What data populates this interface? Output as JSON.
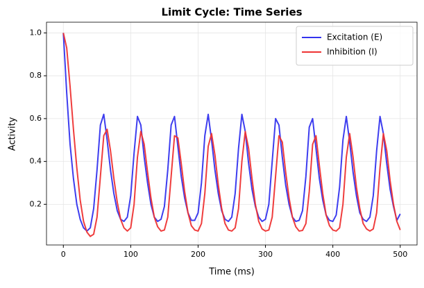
{
  "chart_data": {
    "type": "line",
    "title": "Limit Cycle: Time Series",
    "xlabel": "Time (ms)",
    "ylabel": "Activity",
    "x": [
      0,
      5,
      10,
      15,
      20,
      25,
      30,
      35,
      40,
      45,
      50,
      55,
      60,
      65,
      70,
      75,
      80,
      85,
      90,
      95,
      100,
      105,
      110,
      115,
      120,
      125,
      130,
      135,
      140,
      145,
      150,
      155,
      160,
      165,
      170,
      175,
      180,
      185,
      190,
      195,
      200,
      205,
      210,
      215,
      220,
      225,
      230,
      235,
      240,
      245,
      250,
      255,
      260,
      265,
      270,
      275,
      280,
      285,
      290,
      295,
      300,
      305,
      310,
      315,
      320,
      325,
      330,
      335,
      340,
      345,
      350,
      355,
      360,
      365,
      370,
      375,
      380,
      385,
      390,
      395,
      400,
      405,
      410,
      415,
      420,
      425,
      430,
      435,
      440,
      445,
      450,
      455,
      460,
      465,
      470,
      475,
      480,
      485,
      490,
      495,
      500
    ],
    "series": [
      {
        "name": "Excitation (E)",
        "color": "#3333ee",
        "values": [
          1.0,
          0.72,
          0.48,
          0.32,
          0.2,
          0.13,
          0.09,
          0.075,
          0.09,
          0.18,
          0.36,
          0.57,
          0.62,
          0.5,
          0.36,
          0.25,
          0.17,
          0.13,
          0.12,
          0.14,
          0.24,
          0.44,
          0.61,
          0.57,
          0.42,
          0.3,
          0.2,
          0.14,
          0.12,
          0.13,
          0.19,
          0.36,
          0.57,
          0.61,
          0.47,
          0.33,
          0.23,
          0.16,
          0.125,
          0.125,
          0.16,
          0.3,
          0.52,
          0.62,
          0.5,
          0.36,
          0.25,
          0.17,
          0.13,
          0.12,
          0.14,
          0.25,
          0.46,
          0.62,
          0.54,
          0.39,
          0.27,
          0.19,
          0.14,
          0.12,
          0.13,
          0.2,
          0.4,
          0.6,
          0.57,
          0.42,
          0.29,
          0.2,
          0.14,
          0.12,
          0.125,
          0.17,
          0.33,
          0.56,
          0.6,
          0.46,
          0.32,
          0.22,
          0.15,
          0.125,
          0.12,
          0.15,
          0.28,
          0.5,
          0.61,
          0.49,
          0.35,
          0.24,
          0.16,
          0.13,
          0.12,
          0.14,
          0.24,
          0.45,
          0.61,
          0.53,
          0.39,
          0.27,
          0.19,
          0.125,
          0.155
        ]
      },
      {
        "name": "Inhibition (I)",
        "color": "#ee3333",
        "values": [
          1.0,
          0.93,
          0.75,
          0.55,
          0.37,
          0.22,
          0.12,
          0.07,
          0.05,
          0.06,
          0.14,
          0.33,
          0.52,
          0.55,
          0.45,
          0.32,
          0.21,
          0.13,
          0.09,
          0.075,
          0.09,
          0.2,
          0.42,
          0.54,
          0.48,
          0.35,
          0.23,
          0.14,
          0.095,
          0.075,
          0.08,
          0.14,
          0.33,
          0.52,
          0.51,
          0.39,
          0.26,
          0.16,
          0.1,
          0.08,
          0.075,
          0.11,
          0.25,
          0.47,
          0.53,
          0.43,
          0.29,
          0.18,
          0.11,
          0.08,
          0.075,
          0.09,
          0.18,
          0.4,
          0.54,
          0.46,
          0.32,
          0.2,
          0.12,
          0.085,
          0.075,
          0.08,
          0.14,
          0.33,
          0.52,
          0.49,
          0.35,
          0.23,
          0.14,
          0.095,
          0.075,
          0.078,
          0.11,
          0.26,
          0.48,
          0.52,
          0.38,
          0.25,
          0.15,
          0.1,
          0.08,
          0.075,
          0.09,
          0.2,
          0.42,
          0.53,
          0.42,
          0.28,
          0.18,
          0.11,
          0.085,
          0.075,
          0.085,
          0.16,
          0.37,
          0.53,
          0.45,
          0.31,
          0.2,
          0.12,
          0.08
        ]
      }
    ],
    "xlim": [
      -25,
      525
    ],
    "xticks": [
      0,
      100,
      200,
      300,
      400,
      500
    ],
    "ylim": [
      0.01,
      1.05
    ],
    "yticks": [
      0.2,
      0.4,
      0.6,
      0.8,
      {
        "value": 1,
        "label": "1.0"
      }
    ],
    "grid": true,
    "legend": "upper-right"
  }
}
